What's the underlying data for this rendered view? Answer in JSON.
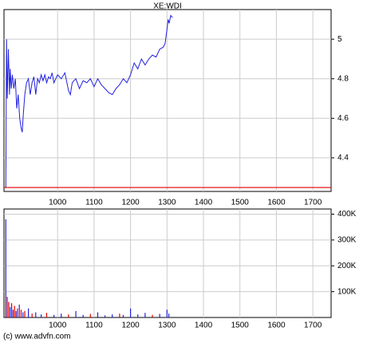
{
  "chart_data": [
    {
      "type": "line",
      "title": "XE:WDI",
      "color": "#2020e0",
      "x": [
        858,
        860,
        862,
        865,
        868,
        870,
        873,
        876,
        880,
        884,
        888,
        892,
        896,
        900,
        903,
        906,
        910,
        915,
        920,
        925,
        930,
        935,
        940,
        945,
        950,
        955,
        960,
        965,
        970,
        975,
        980,
        985,
        990,
        1000,
        1010,
        1020,
        1030,
        1035,
        1040,
        1050,
        1060,
        1070,
        1080,
        1090,
        1100,
        1110,
        1120,
        1130,
        1140,
        1150,
        1160,
        1170,
        1180,
        1190,
        1200,
        1210,
        1220,
        1230,
        1240,
        1250,
        1260,
        1270,
        1280,
        1290,
        1295,
        1300,
        1303,
        1306,
        1310,
        1315
      ],
      "values": [
        4.25,
        5.0,
        4.7,
        4.95,
        4.72,
        4.85,
        4.75,
        4.82,
        4.75,
        4.8,
        4.65,
        4.72,
        4.6,
        4.55,
        4.53,
        4.62,
        4.72,
        4.78,
        4.8,
        4.72,
        4.78,
        4.81,
        4.72,
        4.8,
        4.78,
        4.82,
        4.79,
        4.82,
        4.78,
        4.81,
        4.8,
        4.83,
        4.78,
        4.82,
        4.8,
        4.83,
        4.74,
        4.72,
        4.78,
        4.8,
        4.75,
        4.79,
        4.78,
        4.8,
        4.76,
        4.8,
        4.77,
        4.75,
        4.73,
        4.72,
        4.75,
        4.77,
        4.8,
        4.78,
        4.82,
        4.88,
        4.85,
        4.9,
        4.87,
        4.9,
        4.92,
        4.91,
        4.95,
        4.96,
        4.98,
        5.05,
        5.1,
        5.08,
        5.12,
        5.11
      ],
      "reference_line": {
        "value": 4.25,
        "color": "#e00000"
      },
      "xlim": [
        853,
        1750
      ],
      "xticks": [
        1000,
        1100,
        1200,
        1300,
        1400,
        1500,
        1600,
        1700
      ],
      "ylim": [
        4.23,
        5.15
      ],
      "yticks": [
        4.4,
        4.6,
        4.8,
        5
      ],
      "grid": true
    },
    {
      "type": "bar",
      "x": [
        858,
        862,
        866,
        870,
        874,
        878,
        882,
        886,
        890,
        895,
        900,
        905,
        910,
        920,
        930,
        940,
        955,
        970,
        990,
        1010,
        1030,
        1050,
        1070,
        1090,
        1110,
        1130,
        1150,
        1170,
        1180,
        1200,
        1220,
        1240,
        1260,
        1280,
        1300,
        1305
      ],
      "values": [
        380000,
        80000,
        60000,
        40000,
        55000,
        30000,
        45000,
        25000,
        35000,
        50000,
        30000,
        20000,
        25000,
        35000,
        15000,
        20000,
        12000,
        18000,
        10000,
        15000,
        12000,
        25000,
        10000,
        14000,
        20000,
        8000,
        12000,
        15000,
        10000,
        35000,
        12000,
        18000,
        10000,
        14000,
        30000,
        15000
      ],
      "colors": [
        "#2020e0",
        "#e00000",
        "#e00000",
        "#2020e0",
        "#e00000",
        "#2020e0",
        "#e00000",
        "#2020e0",
        "#e00000",
        "#2020e0",
        "#e00000",
        "#2020e0",
        "#e00000",
        "#2020e0",
        "#e00000",
        "#2020e0",
        "#2020e0",
        "#e00000",
        "#2020e0",
        "#2020e0",
        "#e00000",
        "#2020e0",
        "#2020e0",
        "#e00000",
        "#2020e0",
        "#2020e0",
        "#2020e0",
        "#e00000",
        "#2020e0",
        "#2020e0",
        "#2020e0",
        "#2020e0",
        "#e00000",
        "#2020e0",
        "#2020e0",
        "#2020e0"
      ],
      "xlim": [
        853,
        1750
      ],
      "xticks": [
        1000,
        1100,
        1200,
        1300,
        1400,
        1500,
        1600,
        1700
      ],
      "ylim": [
        0,
        420000
      ],
      "yticks": [
        {
          "value": 100000,
          "label": "100K"
        },
        {
          "value": 200000,
          "label": "200K"
        },
        {
          "value": 300000,
          "label": "300K"
        },
        {
          "value": 400000,
          "label": "400K"
        }
      ],
      "grid": true
    }
  ],
  "footer": "(c) www.advfn.com"
}
